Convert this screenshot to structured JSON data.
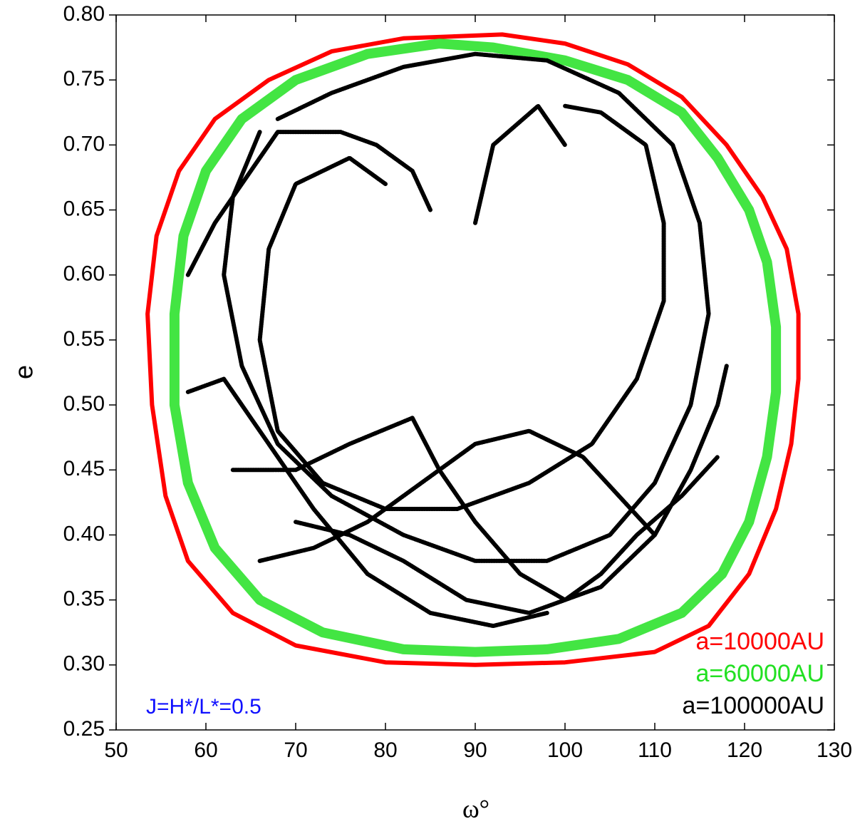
{
  "chart_data": {
    "type": "line",
    "xlabel": "ω°",
    "ylabel": "e",
    "annotation": "J=H*/L*=0.5",
    "xlim": [
      50,
      130
    ],
    "ylim": [
      0.25,
      0.8
    ],
    "xticks": [
      50,
      60,
      70,
      80,
      90,
      100,
      110,
      120,
      130
    ],
    "yticks": [
      0.25,
      {
        "value": 0.3,
        "label": "0.30"
      },
      0.35,
      {
        "value": 0.4,
        "label": "0.40"
      },
      0.45,
      {
        "value": 0.5,
        "label": "0.50"
      },
      0.55,
      {
        "value": 0.6,
        "label": "0.60"
      },
      0.65,
      {
        "value": 0.7,
        "label": "0.70"
      },
      0.75,
      {
        "value": 0.8,
        "label": "0.80"
      }
    ],
    "legend": "lower right",
    "series": [
      {
        "name": "a=10000AU",
        "color": "#ff0000",
        "x": [
          93,
          100,
          107,
          113,
          118,
          122,
          124.7,
          126,
          126,
          125.2,
          123.5,
          120.5,
          116,
          110,
          100,
          90,
          80,
          70,
          63,
          58,
          55.5,
          54,
          53.5,
          54.5,
          57,
          61,
          67,
          74,
          82,
          93
        ],
        "values": [
          0.785,
          0.778,
          0.762,
          0.737,
          0.7,
          0.66,
          0.62,
          0.57,
          0.52,
          0.47,
          0.42,
          0.37,
          0.33,
          0.31,
          0.302,
          0.3,
          0.302,
          0.315,
          0.34,
          0.38,
          0.43,
          0.5,
          0.57,
          0.63,
          0.68,
          0.72,
          0.75,
          0.772,
          0.782,
          0.785
        ]
      },
      {
        "name": "a=60000AU",
        "color": "#22e022",
        "x": [
          92,
          100,
          107,
          113,
          117,
          120.5,
          122.5,
          123.5,
          123.5,
          122.5,
          120.5,
          117.5,
          113,
          106,
          98,
          90,
          82,
          73,
          66,
          61,
          58,
          56.5,
          56.5,
          57.5,
          60,
          64,
          70,
          78,
          86,
          92
        ],
        "values": [
          0.775,
          0.765,
          0.75,
          0.725,
          0.69,
          0.65,
          0.61,
          0.56,
          0.51,
          0.46,
          0.41,
          0.37,
          0.34,
          0.32,
          0.312,
          0.31,
          0.312,
          0.325,
          0.35,
          0.39,
          0.44,
          0.5,
          0.57,
          0.63,
          0.68,
          0.72,
          0.75,
          0.77,
          0.778,
          0.775
        ]
      },
      {
        "name": "a=100000AU",
        "color": "#000000",
        "x": [
          66,
          63,
          62,
          64,
          68,
          74,
          82,
          90,
          98,
          105,
          110,
          114,
          116,
          115,
          112,
          106,
          98,
          90,
          82,
          74,
          68,
          null,
          80,
          76,
          70,
          67,
          66,
          68,
          73,
          80,
          88,
          96,
          103,
          108,
          111,
          111,
          109,
          104,
          100,
          null,
          85,
          83,
          79,
          75,
          68,
          65,
          61,
          58,
          null,
          63,
          70,
          76,
          83,
          86,
          90,
          95,
          100,
          104,
          108,
          113,
          117,
          null,
          66,
          72,
          78,
          84,
          90,
          96,
          102,
          106,
          110,
          null,
          58,
          62,
          66,
          72,
          78,
          85,
          92,
          98,
          null,
          90,
          92,
          97,
          100,
          98,
          null,
          118,
          117,
          114,
          110,
          104,
          96,
          89,
          82,
          76,
          70
        ],
        "values": [
          0.71,
          0.66,
          0.6,
          0.53,
          0.47,
          0.43,
          0.4,
          0.38,
          0.38,
          0.4,
          0.44,
          0.5,
          0.57,
          0.64,
          0.7,
          0.74,
          0.765,
          0.77,
          0.76,
          0.74,
          0.72,
          null,
          0.67,
          0.69,
          0.67,
          0.62,
          0.55,
          0.48,
          0.44,
          0.42,
          0.42,
          0.44,
          0.47,
          0.52,
          0.58,
          0.64,
          0.7,
          0.725,
          0.73,
          null,
          0.65,
          0.68,
          0.7,
          0.71,
          0.71,
          0.68,
          0.64,
          0.6,
          null,
          0.45,
          0.45,
          0.47,
          0.49,
          0.45,
          0.41,
          0.37,
          0.35,
          0.37,
          0.4,
          0.43,
          0.46,
          null,
          0.38,
          0.39,
          0.41,
          0.44,
          0.47,
          0.48,
          0.46,
          0.43,
          0.4,
          null,
          0.51,
          0.52,
          0.48,
          0.42,
          0.37,
          0.34,
          0.33,
          0.34,
          null,
          0.64,
          0.7,
          0.73,
          0.7,
          0.72,
          null,
          0.53,
          0.5,
          0.45,
          0.4,
          0.36,
          0.34,
          0.35,
          0.38,
          0.4,
          0.41
        ]
      }
    ]
  }
}
